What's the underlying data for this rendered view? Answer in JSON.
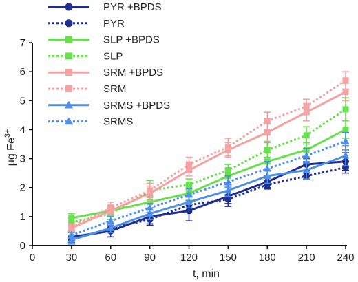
{
  "chart_data": {
    "type": "line",
    "xlabel": "t, min",
    "ylabel": "μg Fe3+",
    "ylabel_main": "μg Fe",
    "ylabel_sup": "3+",
    "xlim": [
      0,
      240
    ],
    "ylim": [
      0,
      7
    ],
    "xticks": [
      "0",
      "30",
      "60",
      "90",
      "120",
      "150",
      "180",
      "210",
      "240"
    ],
    "yticks": [
      "0",
      "1",
      "2",
      "3",
      "4",
      "5",
      "6",
      "7"
    ],
    "grid": false,
    "legend_position": "top-left",
    "x": [
      30,
      60,
      90,
      120,
      150,
      180,
      210,
      240
    ],
    "series": [
      {
        "name": "PYR +BPDS",
        "color": "#1f2f8f",
        "marker": "circle",
        "dash": "solid",
        "values": [
          0.3,
          0.5,
          1.0,
          1.2,
          1.7,
          2.2,
          2.8,
          2.9
        ],
        "errors": [
          0.2,
          0.2,
          0.3,
          0.35,
          0.35,
          0.2,
          0.2,
          0.3
        ]
      },
      {
        "name": "PYR",
        "color": "#1f2f8f",
        "marker": "circle",
        "dash": "dotted",
        "values": [
          0.2,
          0.6,
          0.9,
          1.4,
          1.6,
          2.1,
          2.4,
          2.7
        ],
        "errors": [
          0.1,
          0.1,
          0.15,
          0.1,
          0.15,
          0.15,
          0.1,
          0.2
        ]
      },
      {
        "name": "SLP +BPDS",
        "color": "#66e04c",
        "marker": "square",
        "dash": "solid",
        "values": [
          0.95,
          1.2,
          1.5,
          1.8,
          2.4,
          2.9,
          3.3,
          4.0
        ],
        "errors": [
          0.15,
          0.15,
          0.2,
          0.2,
          0.25,
          0.3,
          0.25,
          0.3
        ]
      },
      {
        "name": "SLP",
        "color": "#66e04c",
        "marker": "square",
        "dash": "dotted",
        "values": [
          0.8,
          1.1,
          1.9,
          2.1,
          2.6,
          3.3,
          3.8,
          4.7
        ],
        "errors": [
          0.15,
          0.2,
          0.35,
          0.2,
          0.2,
          0.25,
          0.3,
          0.4
        ]
      },
      {
        "name": "SRM +BPDS",
        "color": "#f4a2a2",
        "marker": "square",
        "dash": "solid",
        "values": [
          0.6,
          1.2,
          1.8,
          2.6,
          3.3,
          3.9,
          4.6,
          5.3
        ],
        "errors": [
          0.1,
          0.2,
          0.25,
          0.2,
          0.25,
          0.3,
          0.3,
          0.3
        ]
      },
      {
        "name": "SRM",
        "color": "#f4a2a2",
        "marker": "square",
        "dash": "dotted",
        "values": [
          0.65,
          1.3,
          1.9,
          2.8,
          3.4,
          4.3,
          4.8,
          5.7
        ],
        "errors": [
          0.1,
          0.2,
          0.25,
          0.25,
          0.3,
          0.3,
          0.25,
          0.3
        ]
      },
      {
        "name": "SRMS +BPDS",
        "color": "#4d8fe6",
        "marker": "triangle",
        "dash": "solid",
        "values": [
          0.2,
          0.6,
          1.1,
          1.5,
          1.9,
          2.4,
          2.6,
          3.1
        ],
        "errors": [
          0.15,
          0.15,
          0.2,
          0.2,
          0.2,
          0.25,
          0.3,
          0.35
        ]
      },
      {
        "name": "SRMS",
        "color": "#4d8fe6",
        "marker": "triangle",
        "dash": "dotted",
        "values": [
          0.35,
          0.85,
          1.3,
          1.75,
          2.2,
          2.65,
          3.1,
          3.6
        ],
        "errors": [
          0.1,
          0.15,
          0.15,
          0.2,
          0.2,
          0.25,
          0.25,
          0.3
        ]
      }
    ]
  }
}
